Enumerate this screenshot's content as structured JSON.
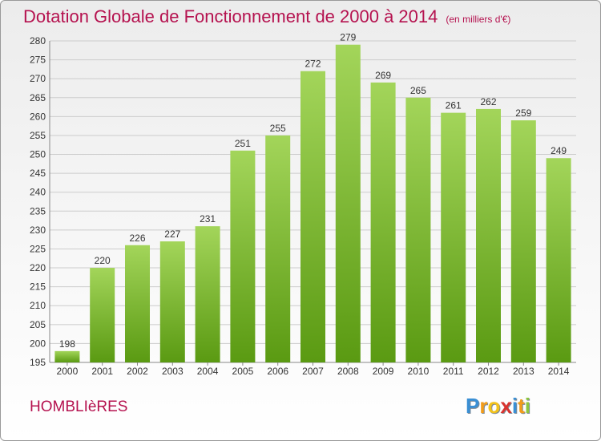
{
  "chart_data": {
    "type": "bar",
    "title": "Dotation Globale de Fonctionnement de 2000 à 2014",
    "subtitle": "(en milliers d'€)",
    "categories": [
      "2000",
      "2001",
      "2002",
      "2003",
      "2004",
      "2005",
      "2006",
      "2007",
      "2008",
      "2009",
      "2010",
      "2011",
      "2012",
      "2013",
      "2014"
    ],
    "values": [
      198,
      220,
      226,
      227,
      231,
      251,
      255,
      272,
      279,
      269,
      265,
      261,
      262,
      259,
      249
    ],
    "ylim": [
      195,
      280
    ],
    "yticks": [
      195,
      200,
      205,
      210,
      215,
      220,
      225,
      230,
      235,
      240,
      245,
      250,
      255,
      260,
      265,
      270,
      275,
      280
    ],
    "grid": true,
    "bar_color": "#7dbb2c",
    "bar_color_light": "#a3d55a",
    "bar_color_dark": "#5a9a12",
    "grid_color": "#cccccc"
  },
  "footer": {
    "town": "HOMBLIèRES",
    "logo": "Proxiti",
    "logo_letters": [
      {
        "ch": "P",
        "color": "#3a8fd4"
      },
      {
        "ch": "r",
        "color": "#f39c19"
      },
      {
        "ch": "o",
        "color": "#f2c21b"
      },
      {
        "ch": "x",
        "color": "#d9322e"
      },
      {
        "ch": "i",
        "color": "#3a8fd4"
      },
      {
        "ch": "t",
        "color": "#f39c19"
      },
      {
        "ch": "i",
        "color": "#8cc63f"
      }
    ]
  }
}
